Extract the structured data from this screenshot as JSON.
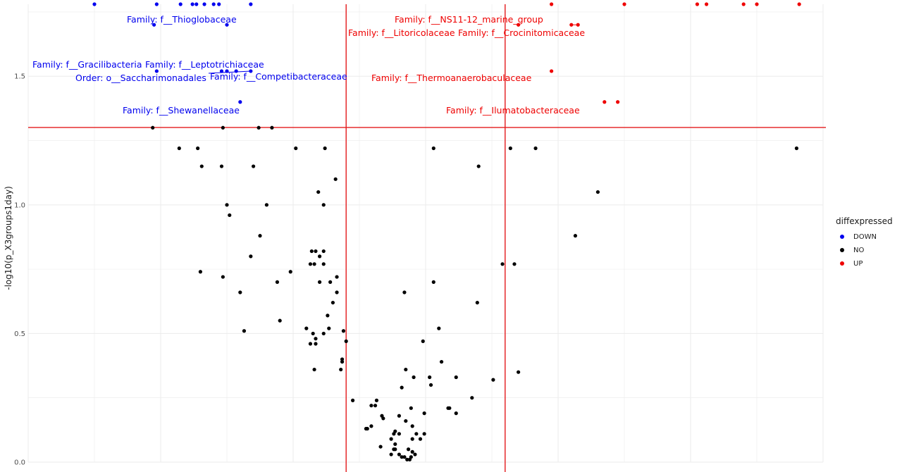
{
  "chart_data": {
    "type": "scatter",
    "title": "",
    "xlabel": "",
    "ylabel": "-log10(p_X3groups1day)",
    "ylim": [
      0,
      1.78
    ],
    "xlim": [
      -3,
      3
    ],
    "yticks": [
      "0.0",
      "0.5",
      "1.0",
      "1.5"
    ],
    "ytick_values": [
      0,
      0.5,
      1.0,
      1.5
    ],
    "grid": true,
    "threshold_lines": {
      "x": [
        -0.6,
        0.6
      ],
      "y": 1.301,
      "color": "#e41a1c"
    },
    "legend": {
      "title": "diffexpressed",
      "position": "right",
      "entries": [
        {
          "label": "DOWN",
          "color": "#0000ee"
        },
        {
          "label": "NO",
          "color": "#000000"
        },
        {
          "label": "UP",
          "color": "#ee0000"
        }
      ]
    },
    "series": [
      {
        "name": "DOWN",
        "color": "#0000ee",
        "points": [
          [
            -2.5,
            1.78
          ],
          [
            -2.03,
            1.78
          ],
          [
            -1.85,
            1.78
          ],
          [
            -1.76,
            1.78
          ],
          [
            -1.73,
            1.78
          ],
          [
            -1.67,
            1.78
          ],
          [
            -1.6,
            1.78
          ],
          [
            -1.56,
            1.78
          ],
          [
            -1.32,
            1.78
          ],
          [
            -2.05,
            1.7
          ],
          [
            -1.5,
            1.7
          ],
          [
            -2.03,
            1.52
          ],
          [
            -1.54,
            1.52
          ],
          [
            -1.5,
            1.52
          ],
          [
            -1.43,
            1.52
          ],
          [
            -1.32,
            1.52
          ],
          [
            -1.4,
            1.4
          ]
        ]
      },
      {
        "name": "NO",
        "color": "#000000",
        "points": [
          [
            -2.06,
            1.3
          ],
          [
            -1.53,
            1.3
          ],
          [
            -1.26,
            1.3
          ],
          [
            -1.16,
            1.3
          ],
          [
            -1.86,
            1.22
          ],
          [
            -1.72,
            1.22
          ],
          [
            -0.98,
            1.22
          ],
          [
            -0.76,
            1.22
          ],
          [
            0.06,
            1.22
          ],
          [
            0.64,
            1.22
          ],
          [
            0.83,
            1.22
          ],
          [
            2.8,
            1.22
          ],
          [
            -1.69,
            1.15
          ],
          [
            -1.54,
            1.15
          ],
          [
            -1.3,
            1.15
          ],
          [
            0.4,
            1.15
          ],
          [
            -0.68,
            1.1
          ],
          [
            -0.81,
            1.05
          ],
          [
            1.3,
            1.05
          ],
          [
            -1.5,
            1.0
          ],
          [
            -1.2,
            1.0
          ],
          [
            -0.77,
            1.0
          ],
          [
            -1.48,
            0.96
          ],
          [
            -1.25,
            0.88
          ],
          [
            1.13,
            0.88
          ],
          [
            -0.86,
            0.82
          ],
          [
            -0.83,
            0.82
          ],
          [
            -0.77,
            0.82
          ],
          [
            -1.32,
            0.8
          ],
          [
            -0.8,
            0.8
          ],
          [
            -0.87,
            0.77
          ],
          [
            -0.84,
            0.77
          ],
          [
            -0.77,
            0.77
          ],
          [
            0.58,
            0.77
          ],
          [
            0.67,
            0.77
          ],
          [
            -1.7,
            0.74
          ],
          [
            -1.02,
            0.74
          ],
          [
            -1.53,
            0.72
          ],
          [
            -0.67,
            0.72
          ],
          [
            -1.12,
            0.7
          ],
          [
            -0.8,
            0.7
          ],
          [
            -0.72,
            0.7
          ],
          [
            0.06,
            0.7
          ],
          [
            -1.4,
            0.66
          ],
          [
            -0.67,
            0.66
          ],
          [
            -0.16,
            0.66
          ],
          [
            -0.7,
            0.62
          ],
          [
            0.39,
            0.62
          ],
          [
            -0.74,
            0.57
          ],
          [
            -1.1,
            0.55
          ],
          [
            -0.9,
            0.52
          ],
          [
            -0.73,
            0.52
          ],
          [
            0.1,
            0.52
          ],
          [
            -1.37,
            0.51
          ],
          [
            -0.62,
            0.51
          ],
          [
            -0.85,
            0.5
          ],
          [
            -0.77,
            0.5
          ],
          [
            -0.83,
            0.48
          ],
          [
            -0.6,
            0.47
          ],
          [
            -0.02,
            0.47
          ],
          [
            -0.87,
            0.46
          ],
          [
            -0.83,
            0.46
          ],
          [
            -0.63,
            0.4
          ],
          [
            -0.63,
            0.39
          ],
          [
            0.12,
            0.39
          ],
          [
            -0.64,
            0.36
          ],
          [
            -0.15,
            0.36
          ],
          [
            -0.84,
            0.36
          ],
          [
            0.7,
            0.35
          ],
          [
            -0.09,
            0.33
          ],
          [
            0.23,
            0.33
          ],
          [
            0.03,
            0.33
          ],
          [
            0.51,
            0.32
          ],
          [
            0.04,
            0.3
          ],
          [
            -0.18,
            0.29
          ],
          [
            0.35,
            0.25
          ],
          [
            -0.55,
            0.24
          ],
          [
            -0.37,
            0.24
          ],
          [
            -0.38,
            0.22
          ],
          [
            -0.41,
            0.22
          ],
          [
            -0.11,
            0.21
          ],
          [
            0.18,
            0.21
          ],
          [
            0.17,
            0.21
          ],
          [
            -0.2,
            0.18
          ],
          [
            -0.33,
            0.18
          ],
          [
            -0.32,
            0.17
          ],
          [
            0.23,
            0.19
          ],
          [
            -0.01,
            0.19
          ],
          [
            -0.41,
            0.14
          ],
          [
            -0.45,
            0.13
          ],
          [
            -0.44,
            0.13
          ],
          [
            -0.15,
            0.16
          ],
          [
            -0.1,
            0.14
          ],
          [
            -0.23,
            0.12
          ],
          [
            -0.24,
            0.11
          ],
          [
            -0.2,
            0.11
          ],
          [
            -0.07,
            0.11
          ],
          [
            -0.01,
            0.11
          ],
          [
            -0.26,
            0.09
          ],
          [
            -0.23,
            0.07
          ],
          [
            -0.1,
            0.09
          ],
          [
            -0.04,
            0.09
          ],
          [
            -0.34,
            0.06
          ],
          [
            -0.24,
            0.05
          ],
          [
            -0.23,
            0.05
          ],
          [
            -0.13,
            0.05
          ],
          [
            -0.1,
            0.04
          ],
          [
            -0.26,
            0.03
          ],
          [
            -0.2,
            0.03
          ],
          [
            -0.18,
            0.02
          ],
          [
            -0.16,
            0.02
          ],
          [
            -0.14,
            0.01
          ],
          [
            -0.12,
            0.01
          ],
          [
            -0.11,
            0.02
          ],
          [
            -0.08,
            0.03
          ]
        ]
      },
      {
        "name": "UP",
        "color": "#ee0000",
        "points": [
          [
            0.95,
            1.78
          ],
          [
            1.5,
            1.78
          ],
          [
            2.05,
            1.78
          ],
          [
            2.12,
            1.78
          ],
          [
            2.4,
            1.78
          ],
          [
            2.5,
            1.78
          ],
          [
            2.82,
            1.78
          ],
          [
            0.7,
            1.7
          ],
          [
            1.1,
            1.7
          ],
          [
            1.15,
            1.7
          ],
          [
            0.95,
            1.52
          ],
          [
            1.35,
            1.4
          ],
          [
            1.45,
            1.4
          ]
        ]
      }
    ],
    "labels": [
      {
        "text": "Family: f__Thioglobaceae",
        "series": "DOWN"
      },
      {
        "text": "Family: f__Gracilibacteria",
        "series": "DOWN"
      },
      {
        "text": "Family: f__Leptotrichiaceae",
        "series": "DOWN"
      },
      {
        "text": "Order: o__Saccharimonadales",
        "series": "DOWN"
      },
      {
        "text": "Family: f__Competibacteraceae",
        "series": "DOWN"
      },
      {
        "text": "Family: f__Shewanellaceae",
        "series": "DOWN"
      },
      {
        "text": "Family: f__NS11-12_marine_group",
        "series": "UP"
      },
      {
        "text": "Family: f__Litoricolaceae",
        "series": "UP"
      },
      {
        "text": "Family: f__Crocinitomicaceae",
        "series": "UP"
      },
      {
        "text": "Family: f__Thermoanaerobaculaceae",
        "series": "UP"
      },
      {
        "text": "Family: f__Ilumatobacteraceae",
        "series": "UP"
      }
    ]
  }
}
